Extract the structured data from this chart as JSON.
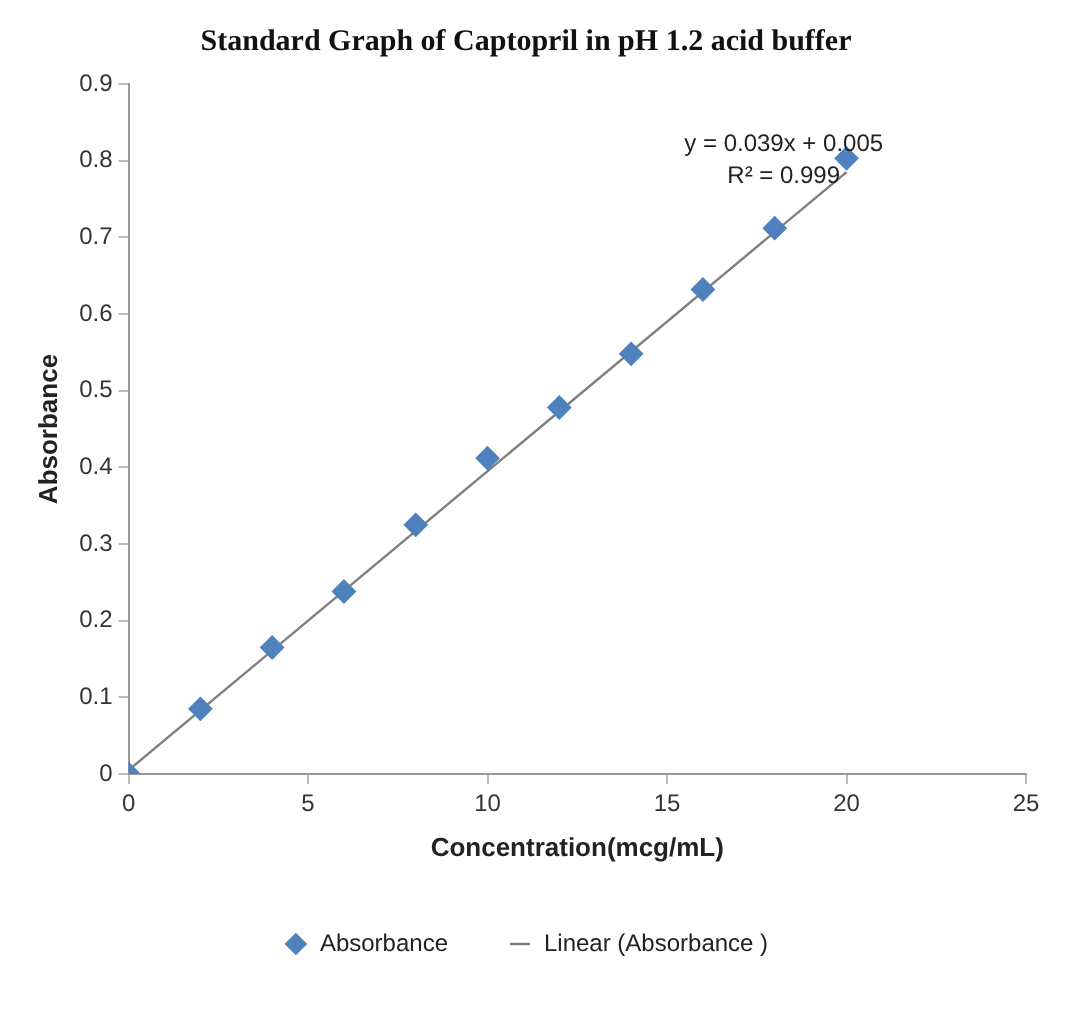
{
  "chart_data": {
    "type": "scatter",
    "title": "Standard Graph of Captopril in pH 1.2 acid buffer",
    "xlabel": "Concentration(mcg/mL)",
    "ylabel": "Absorbance",
    "series": [
      {
        "name": "Absorbance",
        "type": "scatter",
        "color": "#4f81bd",
        "marker": "diamond",
        "x": [
          0,
          2,
          4,
          6,
          8,
          10,
          12,
          14,
          16,
          18,
          20
        ],
        "values": [
          0,
          0.085,
          0.165,
          0.238,
          0.325,
          0.412,
          0.478,
          0.548,
          0.632,
          0.712,
          0.803
        ]
      },
      {
        "name": "Linear (Absorbance )",
        "type": "line",
        "color": "#7f7f7f",
        "marker": "none",
        "x": [
          0,
          20
        ],
        "values": [
          0.005,
          0.785
        ]
      }
    ],
    "xlim": [
      0,
      25
    ],
    "xticks": [
      0,
      5,
      10,
      15,
      20,
      25
    ],
    "ylim": [
      0,
      0.9
    ],
    "yticks": [
      0,
      0.1,
      0.2,
      0.3,
      0.4,
      0.5,
      0.6,
      0.7,
      0.8,
      0.9
    ],
    "annotations": [
      "y = 0.039x + 0.005",
      "R² = 0.999"
    ],
    "grid": false,
    "legend": "bottom"
  }
}
